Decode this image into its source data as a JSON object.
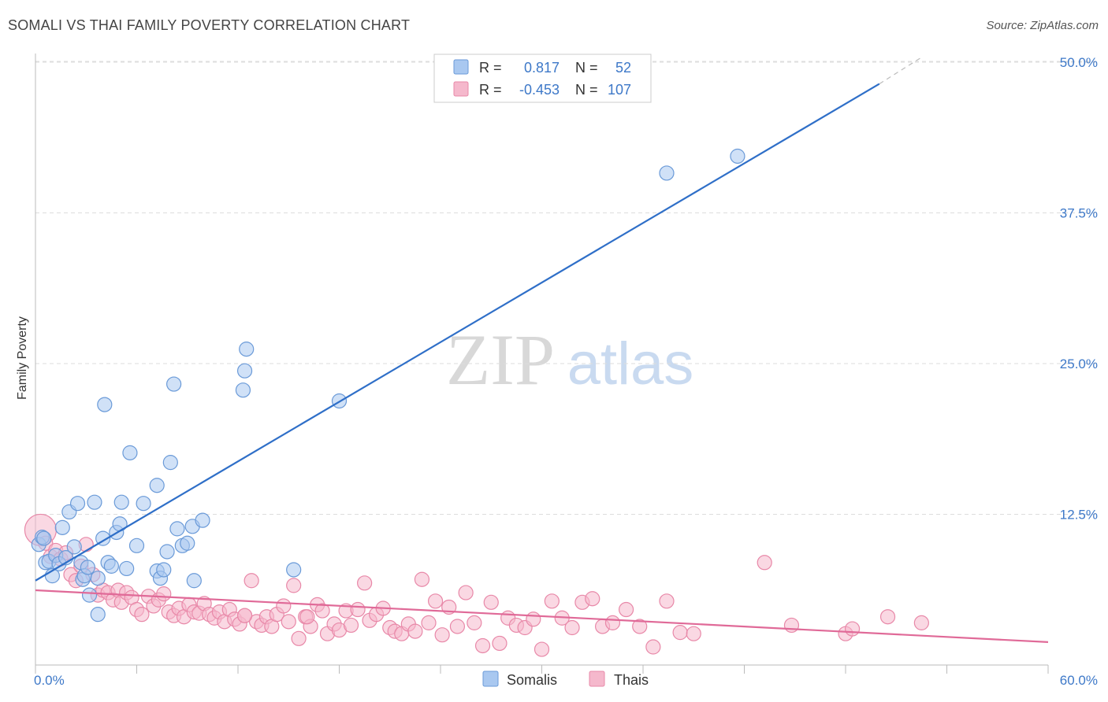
{
  "header": {
    "title": "SOMALI VS THAI FAMILY POVERTY CORRELATION CHART",
    "source": "Source: ZipAtlas.com"
  },
  "watermark": {
    "zip": "ZIP",
    "atlas": "atlas"
  },
  "colors": {
    "somali_fill": "#a9c8f0",
    "somali_stroke": "#6a9ad8",
    "somali_line": "#2f6fc8",
    "thai_fill": "#f5b8cc",
    "thai_stroke": "#e888a8",
    "thai_line": "#e06a98",
    "tick_text": "#3d78c8",
    "grid": "#dddddd"
  },
  "chart_data": {
    "type": "scatter",
    "title": "SOMALI VS THAI FAMILY POVERTY CORRELATION CHART",
    "xlabel": "",
    "ylabel": "Family Poverty",
    "xlim": [
      0,
      60
    ],
    "ylim": [
      0,
      52
    ],
    "x_tick_labels": [
      "0.0%",
      "60.0%"
    ],
    "y_ticks": [
      12.5,
      25.0,
      37.5,
      50.0
    ],
    "y_tick_labels": [
      "12.5%",
      "25.0%",
      "37.5%",
      "50.0%"
    ],
    "grid": true,
    "legend_placement": "top-center",
    "legend_rows": [
      {
        "r_label": "R =",
        "r_value": "0.817",
        "n_label": "N =",
        "n_value": "52"
      },
      {
        "r_label": "R =",
        "r_value": "-0.453",
        "n_label": "N =",
        "n_value": "107"
      }
    ],
    "bottom_legend": [
      "Somalis",
      "Thais"
    ],
    "series": [
      {
        "name": "Somalis",
        "trend": {
          "x": [
            0,
            50
          ],
          "y": [
            7.0,
            48.2
          ]
        },
        "trend_dash": {
          "x": [
            50,
            52.5
          ],
          "y": [
            48.2,
            50.4
          ]
        },
        "points": [
          [
            0.2,
            10.0
          ],
          [
            0.4,
            10.6
          ],
          [
            0.6,
            8.5
          ],
          [
            0.8,
            8.6
          ],
          [
            1.0,
            7.4
          ],
          [
            1.2,
            9.1
          ],
          [
            1.4,
            8.4
          ],
          [
            1.6,
            11.4
          ],
          [
            1.8,
            8.9
          ],
          [
            2.0,
            12.7
          ],
          [
            2.3,
            9.8
          ],
          [
            2.5,
            13.4
          ],
          [
            2.7,
            8.5
          ],
          [
            2.8,
            7.1
          ],
          [
            2.9,
            7.4
          ],
          [
            3.1,
            8.1
          ],
          [
            3.2,
            5.8
          ],
          [
            3.5,
            13.5
          ],
          [
            3.7,
            7.2
          ],
          [
            3.7,
            4.2
          ],
          [
            4.0,
            10.5
          ],
          [
            4.1,
            21.6
          ],
          [
            4.3,
            8.5
          ],
          [
            4.5,
            8.2
          ],
          [
            4.8,
            11.0
          ],
          [
            5.0,
            11.7
          ],
          [
            5.1,
            13.5
          ],
          [
            5.4,
            8.0
          ],
          [
            5.6,
            17.6
          ],
          [
            6.0,
            9.9
          ],
          [
            6.4,
            13.4
          ],
          [
            7.2,
            14.9
          ],
          [
            7.2,
            7.8
          ],
          [
            7.4,
            7.2
          ],
          [
            7.6,
            7.9
          ],
          [
            7.8,
            9.4
          ],
          [
            8.0,
            16.8
          ],
          [
            8.2,
            23.3
          ],
          [
            8.4,
            11.3
          ],
          [
            8.7,
            9.9
          ],
          [
            9.0,
            10.1
          ],
          [
            9.3,
            11.5
          ],
          [
            9.4,
            7.0
          ],
          [
            9.9,
            12.0
          ],
          [
            12.3,
            22.8
          ],
          [
            12.4,
            24.4
          ],
          [
            12.5,
            26.2
          ],
          [
            15.3,
            7.9
          ],
          [
            18.0,
            21.9
          ],
          [
            37.4,
            40.8
          ],
          [
            41.6,
            42.2
          ],
          [
            0.5,
            10.5
          ]
        ]
      },
      {
        "name": "Thais",
        "trend": {
          "x": [
            0,
            60
          ],
          "y": [
            6.2,
            1.9
          ]
        },
        "points": [
          [
            0.3,
            11.2
          ],
          [
            0.6,
            10.1
          ],
          [
            0.9,
            9.0
          ],
          [
            1.2,
            9.5
          ],
          [
            1.5,
            8.8
          ],
          [
            1.8,
            9.3
          ],
          [
            2.1,
            7.5
          ],
          [
            2.4,
            7.0
          ],
          [
            2.7,
            8.2
          ],
          [
            3.0,
            10.0
          ],
          [
            3.4,
            7.5
          ],
          [
            3.7,
            5.8
          ],
          [
            4.0,
            6.2
          ],
          [
            4.3,
            6.0
          ],
          [
            4.6,
            5.4
          ],
          [
            4.9,
            6.2
          ],
          [
            5.1,
            5.2
          ],
          [
            5.4,
            6.0
          ],
          [
            5.7,
            5.6
          ],
          [
            6.0,
            4.6
          ],
          [
            6.3,
            4.2
          ],
          [
            6.7,
            5.7
          ],
          [
            7.0,
            4.9
          ],
          [
            7.3,
            5.4
          ],
          [
            7.6,
            5.9
          ],
          [
            7.9,
            4.4
          ],
          [
            8.2,
            4.1
          ],
          [
            8.5,
            4.7
          ],
          [
            8.8,
            4.0
          ],
          [
            9.1,
            5.0
          ],
          [
            9.4,
            4.4
          ],
          [
            9.7,
            4.3
          ],
          [
            10.0,
            5.1
          ],
          [
            10.3,
            4.2
          ],
          [
            10.6,
            3.9
          ],
          [
            10.9,
            4.4
          ],
          [
            11.2,
            3.6
          ],
          [
            11.5,
            4.6
          ],
          [
            11.8,
            3.8
          ],
          [
            12.1,
            3.4
          ],
          [
            12.4,
            4.1
          ],
          [
            12.8,
            7.0
          ],
          [
            13.1,
            3.6
          ],
          [
            13.4,
            3.3
          ],
          [
            13.7,
            4.0
          ],
          [
            14.0,
            3.2
          ],
          [
            14.3,
            4.2
          ],
          [
            14.7,
            4.9
          ],
          [
            15.0,
            3.6
          ],
          [
            15.3,
            6.6
          ],
          [
            15.6,
            2.2
          ],
          [
            16.0,
            4.0
          ],
          [
            16.3,
            3.2
          ],
          [
            16.7,
            5.0
          ],
          [
            17.0,
            4.5
          ],
          [
            17.3,
            2.6
          ],
          [
            17.7,
            3.4
          ],
          [
            18.0,
            2.9
          ],
          [
            18.4,
            4.5
          ],
          [
            18.7,
            3.3
          ],
          [
            19.1,
            4.6
          ],
          [
            19.5,
            6.8
          ],
          [
            19.8,
            3.7
          ],
          [
            20.2,
            4.2
          ],
          [
            20.6,
            4.7
          ],
          [
            21.0,
            3.1
          ],
          [
            21.3,
            2.8
          ],
          [
            21.7,
            2.6
          ],
          [
            22.1,
            3.4
          ],
          [
            22.5,
            2.8
          ],
          [
            22.9,
            7.1
          ],
          [
            23.3,
            3.5
          ],
          [
            23.7,
            5.3
          ],
          [
            24.1,
            2.5
          ],
          [
            24.5,
            4.8
          ],
          [
            25.0,
            3.2
          ],
          [
            25.5,
            6.0
          ],
          [
            26.0,
            3.5
          ],
          [
            26.5,
            1.6
          ],
          [
            27.0,
            5.2
          ],
          [
            27.5,
            1.8
          ],
          [
            28.0,
            3.9
          ],
          [
            28.5,
            3.3
          ],
          [
            29.0,
            3.1
          ],
          [
            29.5,
            3.8
          ],
          [
            30.0,
            1.3
          ],
          [
            30.6,
            5.3
          ],
          [
            31.2,
            3.9
          ],
          [
            31.8,
            3.1
          ],
          [
            32.4,
            5.2
          ],
          [
            33.0,
            5.5
          ],
          [
            33.6,
            3.2
          ],
          [
            34.2,
            3.5
          ],
          [
            35.0,
            4.6
          ],
          [
            35.8,
            3.2
          ],
          [
            36.6,
            1.5
          ],
          [
            37.4,
            5.3
          ],
          [
            38.2,
            2.7
          ],
          [
            39.0,
            2.6
          ],
          [
            43.2,
            8.5
          ],
          [
            44.8,
            3.3
          ],
          [
            48.0,
            2.6
          ],
          [
            48.4,
            3.0
          ],
          [
            50.5,
            4.0
          ],
          [
            52.5,
            3.5
          ],
          [
            12.4,
            4.1
          ],
          [
            16.1,
            4.0
          ]
        ]
      }
    ]
  }
}
